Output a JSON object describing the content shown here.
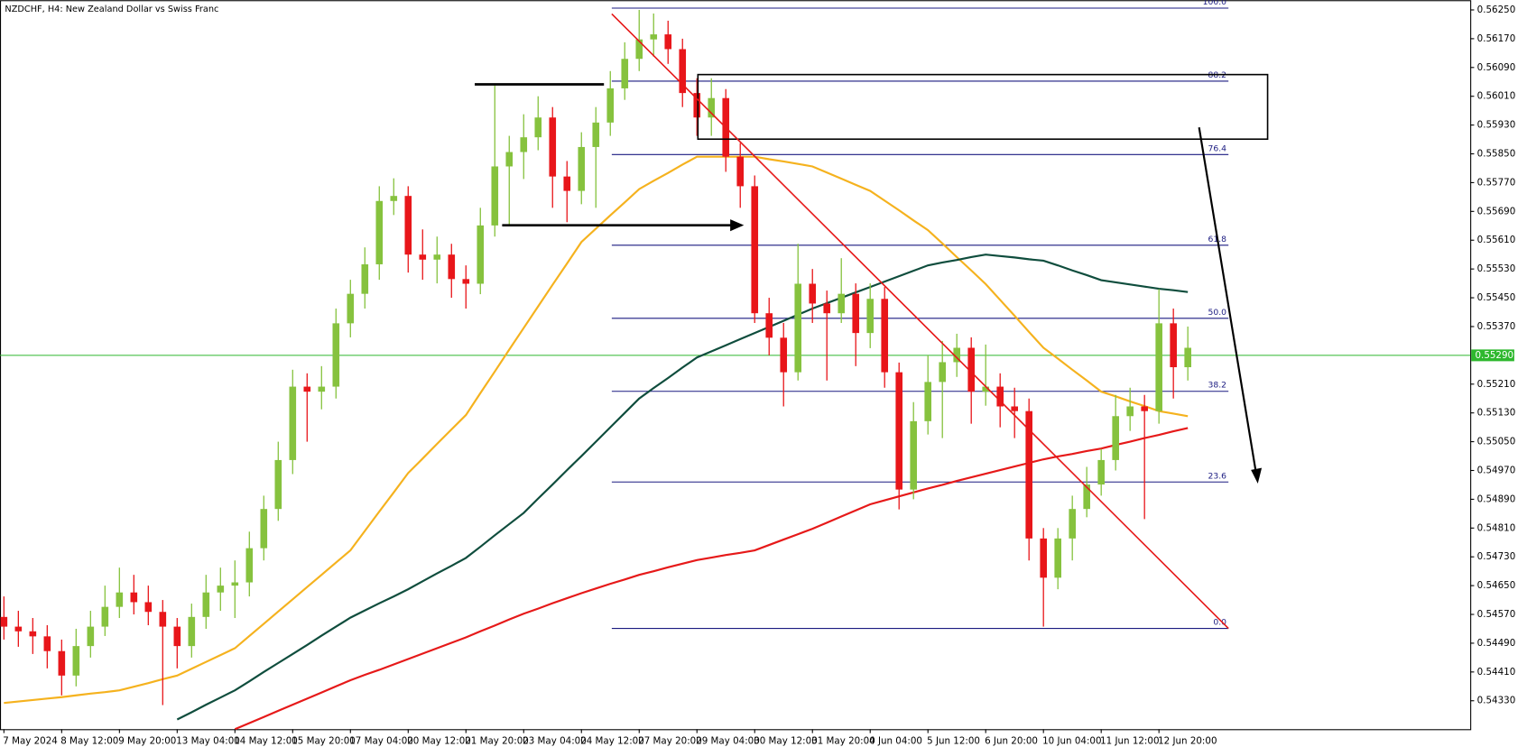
{
  "chart_data": {
    "type": "candlestick",
    "title": "NZDCHF, H4:  New Zealand Dollar vs Swiss Franc",
    "categories": [
      "7 May 2024",
      null,
      null,
      null,
      "8 May 12:00",
      null,
      null,
      null,
      "9 May 20:00",
      null,
      null,
      null,
      "13 May 04:00",
      null,
      null,
      null,
      "14 May 12:00",
      null,
      null,
      null,
      "15 May 20:00",
      null,
      null,
      null,
      "17 May 04:00",
      null,
      null,
      null,
      "20 May 12:00",
      null,
      null,
      null,
      "21 May 20:00",
      null,
      null,
      null,
      "23 May 04:00",
      null,
      null,
      null,
      "24 May 12:00",
      null,
      null,
      null,
      "27 May 20:00",
      null,
      null,
      null,
      "29 May 04:00",
      null,
      null,
      null,
      "30 May 12:00",
      null,
      null,
      null,
      "31 May 20:00",
      null,
      null,
      null,
      "4 Jun 04:00",
      null,
      null,
      null,
      "5 Jun 12:00",
      null,
      null,
      null,
      "6 Jun 20:00",
      null,
      null,
      null,
      "10 Jun 04:00",
      null,
      null,
      null,
      "11 Jun 12:00",
      null,
      null,
      null,
      "12 Jun 20:00",
      null,
      null
    ],
    "open": [
      0.54563,
      0.54536,
      0.54523,
      0.54509,
      0.54468,
      0.544,
      0.54482,
      0.54536,
      0.54591,
      0.54631,
      0.54604,
      0.54577,
      0.54536,
      0.54482,
      0.54563,
      0.54631,
      0.5465,
      0.54659,
      0.54754,
      0.54863,
      0.54999,
      0.55203,
      0.55189,
      0.55203,
      0.55379,
      0.55461,
      0.55543,
      0.55719,
      0.55733,
      0.5557,
      0.55556,
      0.5557,
      0.55502,
      0.55489,
      0.55651,
      0.55815,
      0.55855,
      0.55896,
      0.55951,
      0.55787,
      0.55747,
      0.55869,
      0.55937,
      0.56032,
      0.56114,
      0.56168,
      0.56182,
      0.56141,
      0.56019,
      0.55951,
      0.56005,
      0.55842,
      0.5576,
      0.55407,
      0.55339,
      0.55243,
      0.55489,
      0.55434,
      0.55407,
      0.55461,
      0.55352,
      0.55447,
      0.55243,
      0.54917,
      0.55107,
      0.55216,
      0.55271,
      0.55311,
      0.55189,
      0.55203,
      0.55148,
      0.55135,
      0.54781,
      0.54672,
      0.54781,
      0.54863,
      0.54931,
      0.54999,
      0.55121,
      0.55148,
      0.55135,
      0.55379,
      0.55257
    ],
    "high": [
      0.5462,
      0.5458,
      0.5456,
      0.5454,
      0.545,
      0.5453,
      0.5458,
      0.5465,
      0.547,
      0.5468,
      0.5465,
      0.5461,
      0.5456,
      0.546,
      0.5468,
      0.547,
      0.5472,
      0.548,
      0.549,
      0.5505,
      0.5525,
      0.5524,
      0.5526,
      0.5542,
      0.555,
      0.5559,
      0.5576,
      0.55782,
      0.5576,
      0.5564,
      0.5562,
      0.556,
      0.5554,
      0.557,
      0.5604,
      0.559,
      0.5596,
      0.5601,
      0.5598,
      0.5583,
      0.5591,
      0.5598,
      0.5608,
      0.5616,
      0.5625,
      0.5624,
      0.5622,
      0.5617,
      0.5606,
      0.5606,
      0.5603,
      0.5588,
      0.5579,
      0.5545,
      0.5538,
      0.556,
      0.5553,
      0.5547,
      0.5556,
      0.5549,
      0.5549,
      0.5548,
      0.5527,
      0.5516,
      0.5529,
      0.5533,
      0.5535,
      0.5534,
      0.5532,
      0.5524,
      0.552,
      0.5517,
      0.5481,
      0.5481,
      0.549,
      0.5498,
      0.5503,
      0.5518,
      0.552,
      0.5518,
      0.55474,
      0.5542,
      0.5537
    ],
    "low": [
      0.545,
      0.5448,
      0.5446,
      0.5442,
      0.54345,
      0.5437,
      0.5445,
      0.5451,
      0.5456,
      0.5457,
      0.5454,
      0.54318,
      0.5442,
      0.5445,
      0.5453,
      0.5458,
      0.5456,
      0.5462,
      0.5472,
      0.5483,
      0.5496,
      0.5505,
      0.5514,
      0.5517,
      0.5534,
      0.5542,
      0.555,
      0.5568,
      0.5552,
      0.555,
      0.5549,
      0.5545,
      0.5542,
      0.5546,
      0.5562,
      0.5565,
      0.5578,
      0.5586,
      0.557,
      0.5566,
      0.5571,
      0.557,
      0.559,
      0.56,
      0.5608,
      0.5612,
      0.561,
      0.5598,
      0.559,
      0.559,
      0.558,
      0.557,
      0.5538,
      0.5529,
      0.55148,
      0.5522,
      0.5538,
      0.5522,
      0.5538,
      0.5526,
      0.5531,
      0.552,
      0.54862,
      0.5489,
      0.5507,
      0.5506,
      0.5523,
      0.551,
      0.5515,
      0.5509,
      0.5506,
      0.5472,
      0.54536,
      0.5464,
      0.5472,
      0.5484,
      0.549,
      0.5497,
      0.5508,
      0.54835,
      0.551,
      0.5517,
      0.5522
    ],
    "close": [
      0.54536,
      0.54523,
      0.54509,
      0.54468,
      0.544,
      0.54482,
      0.54536,
      0.54591,
      0.54631,
      0.54604,
      0.54577,
      0.54536,
      0.54482,
      0.54563,
      0.54631,
      0.5465,
      0.54659,
      0.54754,
      0.54863,
      0.54999,
      0.55203,
      0.55189,
      0.55203,
      0.55379,
      0.55461,
      0.55543,
      0.55719,
      0.55733,
      0.5557,
      0.55556,
      0.5557,
      0.55502,
      0.55489,
      0.55651,
      0.55815,
      0.55855,
      0.55896,
      0.55951,
      0.55787,
      0.55747,
      0.55869,
      0.55937,
      0.56032,
      0.56114,
      0.56168,
      0.56182,
      0.56141,
      0.56019,
      0.55951,
      0.56005,
      0.55842,
      0.5576,
      0.55407,
      0.55339,
      0.55243,
      0.55489,
      0.55434,
      0.55407,
      0.55461,
      0.55352,
      0.55447,
      0.55243,
      0.54917,
      0.55107,
      0.55216,
      0.55271,
      0.55311,
      0.55189,
      0.55203,
      0.55148,
      0.55135,
      0.54781,
      0.54672,
      0.54781,
      0.54863,
      0.54931,
      0.54999,
      0.55121,
      0.55148,
      0.55135,
      0.55379,
      0.55257,
      0.55311
    ],
    "up_color": "#86c23e",
    "down_color": "#e8161a",
    "overlays": [
      {
        "color": "#f5b21e",
        "values": [
          0.54324,
          0.54328,
          0.54332,
          0.54336,
          0.5434,
          0.54345,
          0.5435,
          0.54354,
          0.54359,
          0.54369,
          0.54379,
          0.5439,
          0.544,
          0.54419,
          0.54438,
          0.54457,
          0.54476,
          0.5451,
          0.54544,
          0.54578,
          0.54612,
          0.54646,
          0.5468,
          0.54714,
          0.54748,
          0.54802,
          0.54856,
          0.54909,
          0.54963,
          0.55003,
          0.55044,
          0.55084,
          0.55124,
          0.55185,
          0.55245,
          0.55306,
          0.55366,
          0.55426,
          0.55486,
          0.55545,
          0.55605,
          0.55642,
          0.55679,
          0.55715,
          0.55752,
          0.55775,
          0.55797,
          0.5582,
          0.55842,
          0.55842,
          0.55842,
          0.55842,
          0.55842,
          0.55835,
          0.55829,
          0.55822,
          0.55815,
          0.55798,
          0.55781,
          0.55764,
          0.55747,
          0.5572,
          0.55693,
          0.55665,
          0.55638,
          0.55601,
          0.55563,
          0.55526,
          0.55488,
          0.55444,
          0.554,
          0.55355,
          0.55311,
          0.55281,
          0.5525,
          0.5522,
          0.55189,
          0.55176,
          0.55162,
          0.55149,
          0.55135,
          0.55128,
          0.55121
        ]
      },
      {
        "color": "#0f4d3d",
        "values": [
          null,
          null,
          null,
          null,
          null,
          null,
          null,
          null,
          null,
          null,
          null,
          null,
          0.54278,
          0.54298,
          0.54319,
          0.54339,
          0.54359,
          0.54384,
          0.5441,
          0.54435,
          0.5446,
          0.54485,
          0.54511,
          0.54536,
          0.54561,
          0.54581,
          0.54601,
          0.5462,
          0.5464,
          0.54662,
          0.54684,
          0.54705,
          0.54727,
          0.54758,
          0.5479,
          0.54821,
          0.54852,
          0.54892,
          0.54931,
          0.54971,
          0.5501,
          0.5505,
          0.5509,
          0.5513,
          0.5517,
          0.55199,
          0.55227,
          0.55256,
          0.55284,
          0.55301,
          0.55318,
          0.55335,
          0.55352,
          0.55369,
          0.55386,
          0.55403,
          0.5542,
          0.55435,
          0.5545,
          0.55465,
          0.5548,
          0.55495,
          0.5551,
          0.55525,
          0.5554,
          0.55548,
          0.55555,
          0.55563,
          0.5557,
          0.55566,
          0.55562,
          0.55557,
          0.55553,
          0.5554,
          0.55526,
          0.55513,
          0.55499,
          0.55493,
          0.55487,
          0.55481,
          0.55475,
          0.55471,
          0.55466
        ]
      },
      {
        "color": "#e61919",
        "values": [
          null,
          null,
          null,
          null,
          null,
          null,
          null,
          null,
          null,
          null,
          null,
          null,
          null,
          null,
          null,
          null,
          0.54251,
          0.54268,
          0.54285,
          0.54302,
          0.54319,
          0.54336,
          0.54353,
          0.5437,
          0.54387,
          0.54402,
          0.54416,
          0.54431,
          0.54446,
          0.54461,
          0.54476,
          0.54491,
          0.54506,
          0.54523,
          0.54539,
          0.54556,
          0.54572,
          0.54586,
          0.54601,
          0.54615,
          0.54629,
          0.54642,
          0.54655,
          0.54667,
          0.5468,
          0.5469,
          0.54701,
          0.54711,
          0.54721,
          0.54728,
          0.54735,
          0.54741,
          0.54748,
          0.54763,
          0.54778,
          0.54793,
          0.54808,
          0.54825,
          0.54842,
          0.54859,
          0.54876,
          0.54887,
          0.54898,
          0.54909,
          0.5492,
          0.5493,
          0.54941,
          0.54951,
          0.54961,
          0.54971,
          0.54981,
          0.54991,
          0.55001,
          0.55009,
          0.55016,
          0.55024,
          0.55031,
          0.55041,
          0.5505,
          0.5506,
          0.55069,
          0.55079,
          0.55088
        ]
      }
    ],
    "fib_levels": [
      {
        "value": 0.56255,
        "label": "100.0"
      },
      {
        "value": 0.56052,
        "label": "88.2"
      },
      {
        "value": 0.55848,
        "label": "76.4"
      },
      {
        "value": 0.55596,
        "label": "61.8"
      },
      {
        "value": 0.55393,
        "label": "50.0"
      },
      {
        "value": 0.5519,
        "label": "38.2"
      },
      {
        "value": 0.54938,
        "label": "23.6"
      },
      {
        "value": 0.54531,
        "label": "0.0"
      }
    ],
    "fib_color": "#1a1a80",
    "current_price": {
      "value": 0.5529,
      "label": "0.55290"
    },
    "current_color": "#2eb82e",
    "ylim": [
      0.54251,
      0.56277
    ],
    "yticks": [
      {
        "value": 0.5625,
        "label": "0.56250"
      },
      {
        "value": 0.5617,
        "label": "0.56170"
      },
      {
        "value": 0.5609,
        "label": "0.56090"
      },
      {
        "value": 0.5601,
        "label": "0.56010"
      },
      {
        "value": 0.5593,
        "label": "0.55930"
      },
      {
        "value": 0.5585,
        "label": "0.55850"
      },
      {
        "value": 0.5577,
        "label": "0.55770"
      },
      {
        "value": 0.5569,
        "label": "0.55690"
      },
      {
        "value": 0.5561,
        "label": "0.55610"
      },
      {
        "value": 0.5553,
        "label": "0.55530"
      },
      {
        "value": 0.5545,
        "label": "0.55450"
      },
      {
        "value": 0.5537,
        "label": "0.55370"
      },
      {
        "value": 0.5521,
        "label": "0.55210"
      },
      {
        "value": 0.5513,
        "label": "0.55130"
      },
      {
        "value": 0.5505,
        "label": "0.55050"
      },
      {
        "value": 0.5497,
        "label": "0.54970"
      },
      {
        "value": 0.5489,
        "label": "0.54890"
      },
      {
        "value": 0.5481,
        "label": "0.54810"
      },
      {
        "value": 0.5473,
        "label": "0.54730"
      },
      {
        "value": 0.5465,
        "label": "0.54650"
      },
      {
        "value": 0.5457,
        "label": "0.54570"
      },
      {
        "value": 0.5449,
        "label": "0.54490"
      },
      {
        "value": 0.5441,
        "label": "0.54410"
      },
      {
        "value": 0.5433,
        "label": "0.54330"
      }
    ]
  }
}
